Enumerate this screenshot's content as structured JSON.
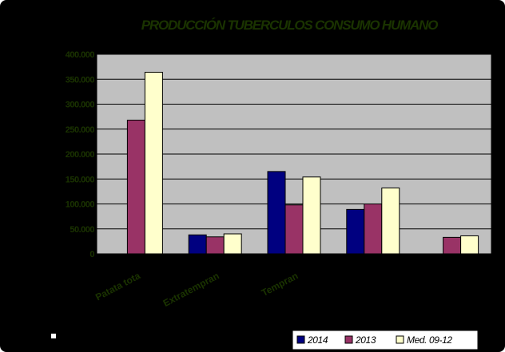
{
  "colors": {
    "background": "#000000",
    "plot_area": "#c0c0c0",
    "text": "#1a3300",
    "legend_bg": "#ffffff",
    "series_2014": "#000080",
    "series_2013": "#993366",
    "series_med": "#ffffcc"
  },
  "chart_data": {
    "type": "bar",
    "title": "PRODUCCIÓN TUBERCULOS CONSUMO HUMANO",
    "xlabel": "",
    "ylabel": "",
    "ylim": [
      0,
      400000
    ],
    "yticks": [
      0,
      50000,
      100000,
      150000,
      200000,
      250000,
      300000,
      350000,
      400000
    ],
    "ytick_labels": [
      "0",
      "50.000",
      "100.000",
      "150.000",
      "200.000",
      "250.000",
      "300.000",
      "350.000",
      "400.000"
    ],
    "grid": true,
    "legend_position": "bottom-right",
    "categories": [
      "Patata total",
      "Extratemprana",
      "Temprana",
      "",
      ""
    ],
    "category_labels_shown": [
      "Patata tota",
      "Extratempran",
      "Tempran",
      "",
      ""
    ],
    "series": [
      {
        "name": "2014",
        "color": "#000080",
        "values": [
          0,
          38000,
          165000,
          89000,
          0
        ]
      },
      {
        "name": "2013",
        "color": "#993366",
        "values": [
          268000,
          34000,
          98000,
          100000,
          33000
        ]
      },
      {
        "name": "Med. 09-12",
        "color": "#ffffcc",
        "values": [
          364000,
          40000,
          154000,
          132000,
          36000
        ]
      }
    ]
  }
}
